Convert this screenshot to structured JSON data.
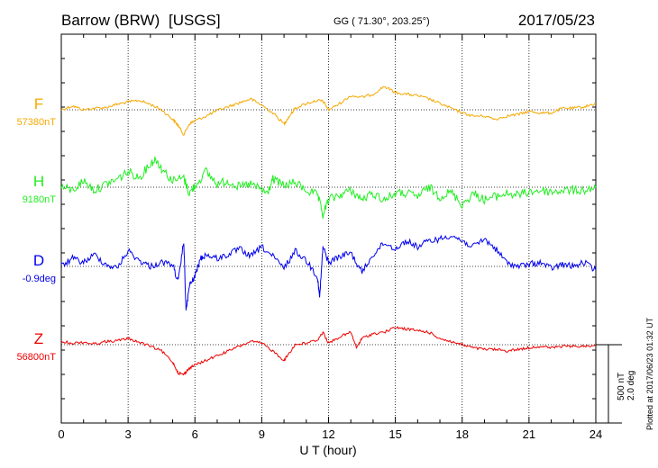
{
  "header": {
    "station": "Barrow (BRW)",
    "network": "[USGS]",
    "coords": "GG ( 71.30°, 203.25°)",
    "date": "2017/05/23"
  },
  "side_note": "Plotted at 2017/06/23 01:32 UT",
  "scale_bar": {
    "line1": "500 nT",
    "line2": "2.0 deg"
  },
  "chart_data": {
    "type": "line",
    "xlabel": "U T (hour)",
    "xlim": [
      0,
      24
    ],
    "xticks": [
      "0",
      "3",
      "6",
      "9",
      "12",
      "15",
      "18",
      "21",
      "24"
    ],
    "grid": true,
    "series": [
      {
        "name": "F",
        "baseline": "57380nT",
        "color": "#f5a800",
        "x": [
          0,
          0.5,
          1,
          1.5,
          2,
          2.5,
          3,
          3.5,
          4,
          4.5,
          5,
          5.25,
          5.5,
          5.75,
          6,
          6.5,
          7,
          7.5,
          8,
          8.5,
          9,
          9.5,
          10,
          10.2,
          10.5,
          11,
          11.5,
          11.75,
          12,
          12.5,
          13,
          13.5,
          14,
          14.5,
          15,
          15.5,
          16,
          16.5,
          17,
          17.5,
          18,
          18.5,
          19,
          19.5,
          20,
          20.5,
          21,
          21.5,
          22,
          22.5,
          23,
          23.5,
          24
        ],
        "y": [
          0,
          25,
          0,
          10,
          15,
          35,
          50,
          60,
          35,
          0,
          -60,
          -100,
          -160,
          -90,
          -70,
          -40,
          -5,
          20,
          45,
          70,
          30,
          -20,
          -90,
          -50,
          10,
          40,
          60,
          55,
          0,
          40,
          90,
          80,
          100,
          150,
          110,
          100,
          90,
          70,
          40,
          10,
          -20,
          -40,
          -40,
          -60,
          -40,
          -30,
          -10,
          -20,
          -20,
          10,
          10,
          20,
          40
        ]
      },
      {
        "name": "H",
        "baseline": "9180nT",
        "color": "#22ee22",
        "x": [
          0,
          0.5,
          1,
          1.5,
          2,
          2.5,
          3,
          3.5,
          4,
          4.25,
          4.5,
          5,
          5.5,
          5.75,
          6,
          6.5,
          7,
          7.5,
          8,
          8.5,
          9,
          9.25,
          9.5,
          10,
          10.5,
          11,
          11.5,
          11.75,
          12,
          12.5,
          13,
          13.5,
          14,
          14.5,
          15,
          15.5,
          16,
          16.5,
          17,
          17.5,
          18,
          18.5,
          19,
          19.5,
          20,
          20.5,
          21,
          21.5,
          22,
          22.5,
          23,
          23.5,
          24
        ],
        "y": [
          0,
          -20,
          40,
          -20,
          20,
          50,
          100,
          60,
          150,
          180,
          120,
          40,
          60,
          -40,
          10,
          100,
          20,
          40,
          0,
          20,
          -20,
          -40,
          50,
          10,
          30,
          -20,
          -50,
          -180,
          -80,
          -50,
          -20,
          -80,
          -40,
          -80,
          -40,
          -40,
          -60,
          0,
          -60,
          -30,
          -110,
          -40,
          -80,
          -60,
          -40,
          -50,
          -30,
          -20,
          -30,
          -20,
          -20,
          -20,
          0
        ]
      },
      {
        "name": "D",
        "baseline": "-0.9deg",
        "color": "#0000ee",
        "x": [
          0,
          0.5,
          1,
          1.5,
          2,
          2.5,
          3,
          3.5,
          4,
          4.5,
          5,
          5.25,
          5.5,
          5.6,
          5.75,
          6,
          6.25,
          6.5,
          7,
          7.5,
          8,
          8.5,
          9,
          9.5,
          10,
          10.5,
          11,
          11.5,
          11.6,
          11.75,
          12,
          12.5,
          13,
          13.5,
          14,
          14.5,
          15,
          15.5,
          16,
          16.5,
          17,
          17.5,
          18,
          18.5,
          19,
          19.5,
          20,
          20.5,
          21,
          21.5,
          22,
          22.5,
          23,
          23.5,
          24
        ],
        "y": [
          0,
          0.2,
          0.1,
          0.3,
          0.05,
          -0.05,
          0.4,
          0.15,
          0,
          0.1,
          0.05,
          -0.4,
          0.65,
          -1.15,
          -0.5,
          -0.25,
          0.2,
          0.3,
          0.2,
          0.3,
          0.45,
          0.25,
          0.5,
          0.25,
          -0.05,
          0.4,
          0.15,
          -0.25,
          -0.8,
          0.5,
          0.1,
          0.25,
          0.35,
          -0.15,
          0.3,
          0.6,
          0.45,
          0.65,
          0.5,
          0.65,
          0.7,
          0.8,
          0.65,
          0.5,
          0.7,
          0.45,
          0.1,
          0,
          0.05,
          0.1,
          -0.05,
          0.05,
          0,
          0.1,
          -0.1
        ]
      },
      {
        "name": "Z",
        "baseline": "56800nT",
        "color": "#ee0000",
        "x": [
          0,
          0.5,
          1,
          1.5,
          2,
          2.5,
          3,
          3.5,
          4,
          4.5,
          5,
          5.25,
          5.5,
          5.75,
          6,
          6.5,
          7,
          7.5,
          8,
          8.5,
          9,
          9.5,
          10,
          10.2,
          10.5,
          11,
          11.5,
          11.75,
          12,
          12.5,
          13,
          13.25,
          13.5,
          14,
          14.5,
          15,
          15.5,
          16,
          16.5,
          17,
          17.5,
          18,
          18.5,
          19,
          19.5,
          20,
          20.5,
          21,
          21.5,
          22,
          22.5,
          23,
          23.5,
          24
        ],
        "y": [
          20,
          10,
          15,
          5,
          20,
          25,
          40,
          15,
          -10,
          -40,
          -110,
          -180,
          -190,
          -150,
          -130,
          -100,
          -70,
          -40,
          -10,
          20,
          10,
          -40,
          -100,
          -60,
          0,
          10,
          30,
          80,
          10,
          50,
          80,
          -20,
          40,
          70,
          80,
          110,
          100,
          90,
          80,
          40,
          20,
          0,
          -20,
          -30,
          -30,
          -40,
          -30,
          -20,
          -10,
          -20,
          -10,
          -10,
          -10,
          0
        ]
      }
    ]
  }
}
